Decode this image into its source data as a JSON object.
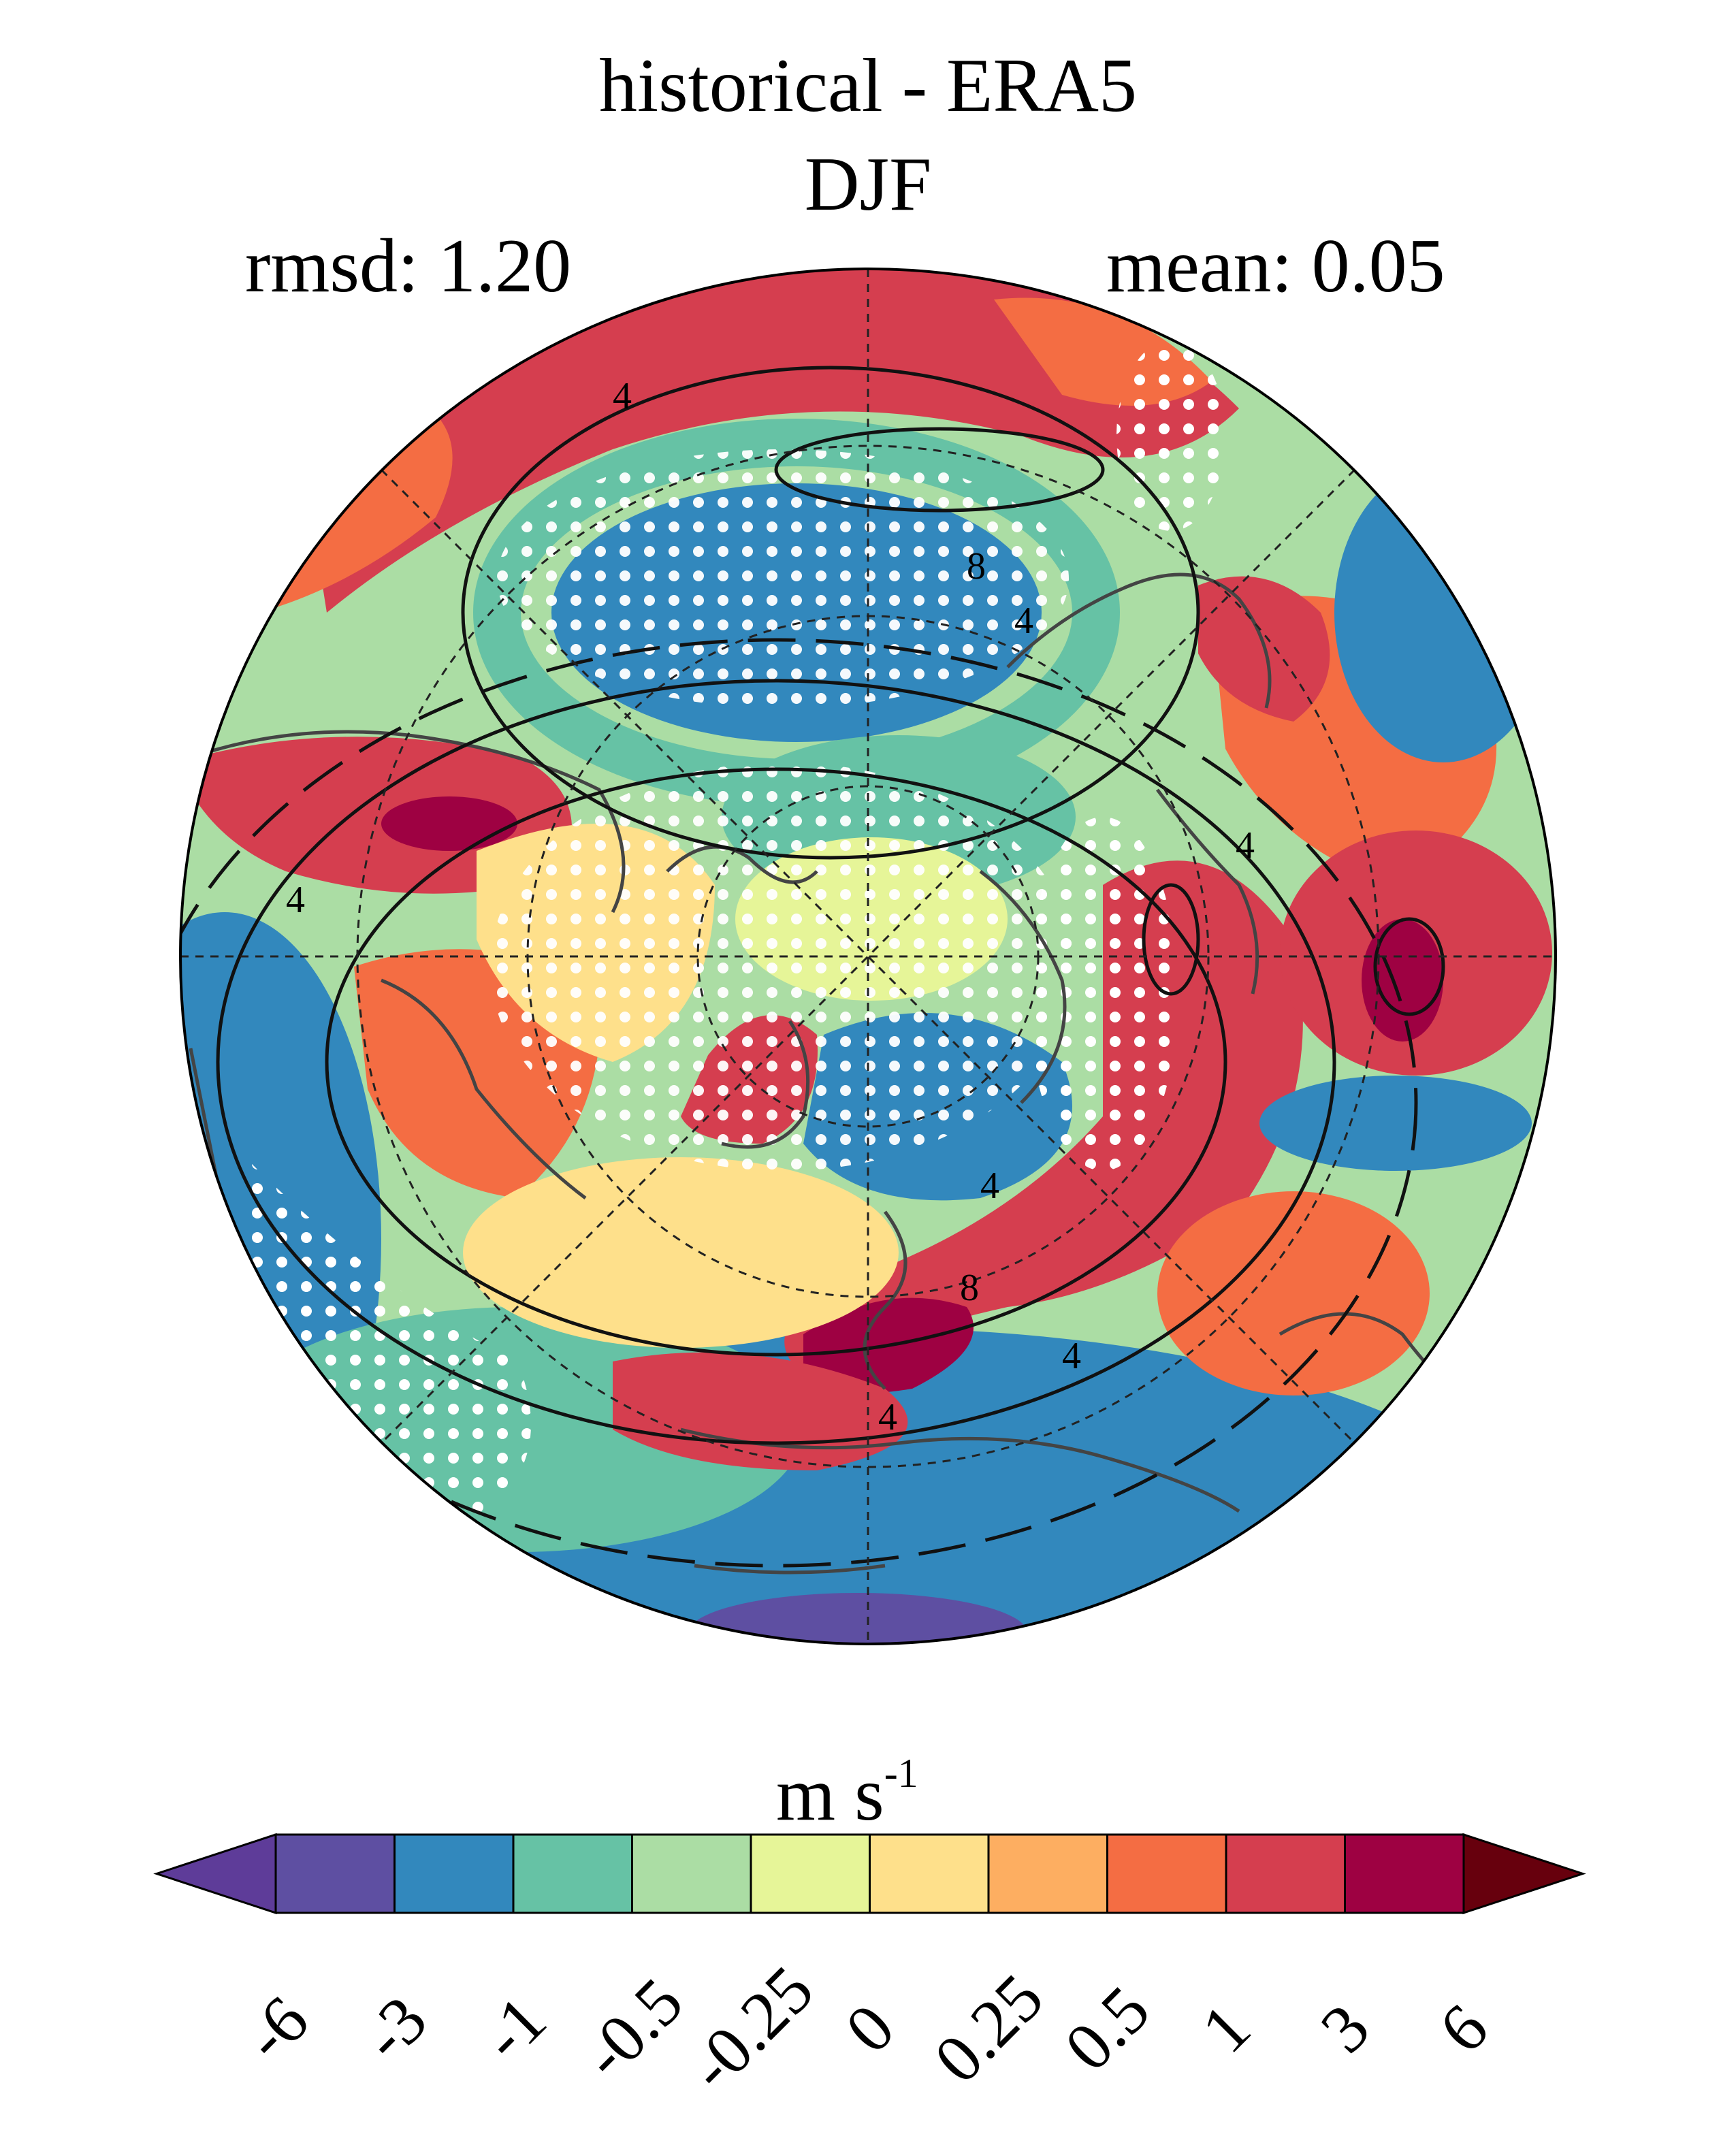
{
  "title": {
    "line1": "historical - ERA5",
    "line2": "DJF"
  },
  "stats": {
    "rmsd": "rmsd: 1.20",
    "mean": "mean: 0.05"
  },
  "colorbar": {
    "units_main": "m s",
    "units_exp": "-1",
    "ticks": [
      "-6",
      "-3",
      "-1",
      "-0.5",
      "-0.25",
      "0",
      "0.25",
      "0.5",
      "1",
      "3",
      "6"
    ],
    "colors": [
      "#5e3c99",
      "#5e4fa2",
      "#3288bd",
      "#66c2a5",
      "#abdda4",
      "#e6f598",
      "#fee08b",
      "#fdae61",
      "#f46d43",
      "#d53e4f",
      "#9e0142",
      "#67000d"
    ]
  },
  "map": {
    "projection": "north-polar-stereographic",
    "contour_labels": [
      "4",
      "8",
      "4",
      "4",
      "4",
      "8",
      "4",
      "4",
      "4"
    ],
    "palette": {
      "deep_red": "#9e0142",
      "red": "#d53e4f",
      "orange": "#f46d43",
      "light_orange": "#fdae61",
      "yellow": "#fee08b",
      "pale": "#e6f598",
      "light_green": "#abdda4",
      "teal": "#66c2a5",
      "blue": "#3288bd",
      "purple": "#5e4fa2"
    }
  }
}
